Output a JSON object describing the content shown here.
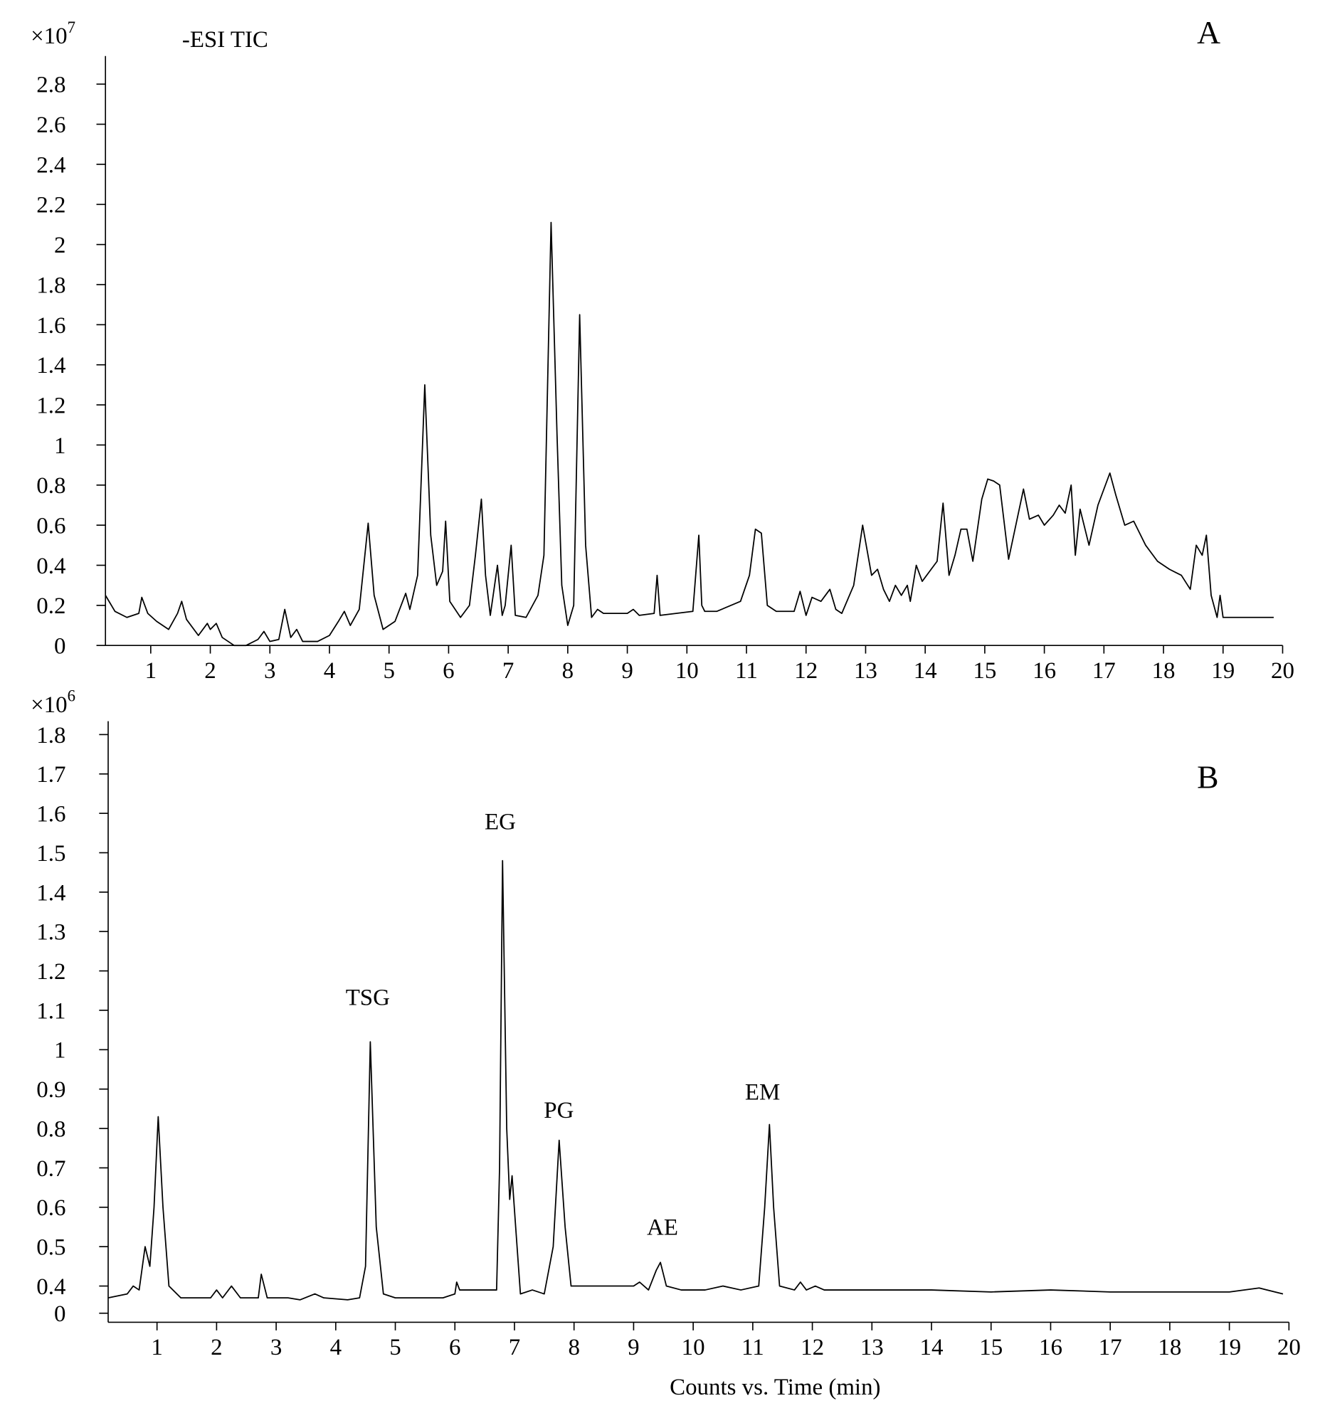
{
  "chart_data": [
    {
      "type": "line",
      "panel": "A",
      "trace_label": "-ESI TIC",
      "y_multiplier": "×10",
      "y_exponent": "7",
      "color": "#000000",
      "xlim": [
        0.24,
        20
      ],
      "xticks": [
        1,
        2,
        3,
        4,
        5,
        6,
        7,
        8,
        9,
        10,
        11,
        12,
        13,
        14,
        15,
        16,
        17,
        18,
        19,
        20
      ],
      "ylim": [
        0,
        2.94
      ],
      "yticks": [
        0,
        0.2,
        0.4,
        0.6,
        0.8,
        1,
        1.2,
        1.4,
        1.6,
        1.8,
        2,
        2.2,
        2.4,
        2.6,
        2.8
      ],
      "x": [
        0.24,
        0.4,
        0.6,
        0.8,
        0.85,
        0.95,
        1.1,
        1.3,
        1.45,
        1.52,
        1.6,
        1.8,
        1.95,
        2.0,
        2.1,
        2.2,
        2.4,
        2.6,
        2.8,
        2.9,
        3.0,
        3.15,
        3.25,
        3.35,
        3.45,
        3.55,
        3.8,
        4.0,
        4.15,
        4.25,
        4.35,
        4.5,
        4.65,
        4.75,
        4.9,
        5.1,
        5.28,
        5.35,
        5.48,
        5.6,
        5.7,
        5.8,
        5.9,
        5.95,
        6.02,
        6.2,
        6.35,
        6.45,
        6.55,
        6.62,
        6.7,
        6.82,
        6.9,
        6.95,
        7.05,
        7.12,
        7.3,
        7.5,
        7.6,
        7.72,
        7.82,
        7.9,
        8.0,
        8.1,
        8.2,
        8.3,
        8.4,
        8.5,
        8.6,
        9.0,
        9.1,
        9.2,
        9.45,
        9.5,
        9.55,
        10.1,
        10.2,
        10.25,
        10.3,
        10.5,
        10.9,
        11.05,
        11.15,
        11.25,
        11.35,
        11.5,
        11.8,
        11.9,
        12.0,
        12.1,
        12.25,
        12.4,
        12.5,
        12.6,
        12.8,
        12.95,
        13.1,
        13.2,
        13.3,
        13.4,
        13.5,
        13.6,
        13.7,
        13.75,
        13.85,
        13.95,
        14.1,
        14.2,
        14.3,
        14.4,
        14.5,
        14.6,
        14.7,
        14.8,
        14.95,
        15.05,
        15.15,
        15.25,
        15.4,
        15.5,
        15.65,
        15.75,
        15.9,
        16.0,
        16.15,
        16.25,
        16.35,
        16.45,
        16.52,
        16.6,
        16.75,
        16.9,
        17.1,
        17.2,
        17.35,
        17.5,
        17.7,
        17.9,
        18.1,
        18.3,
        18.45,
        18.55,
        18.65,
        18.72,
        18.8,
        18.9,
        18.95,
        19.0,
        19.5,
        19.85
      ],
      "values": [
        0.25,
        0.17,
        0.14,
        0.16,
        0.24,
        0.16,
        0.12,
        0.08,
        0.16,
        0.22,
        0.13,
        0.05,
        0.11,
        0.08,
        0.11,
        0.04,
        0.0,
        0.0,
        0.03,
        0.07,
        0.02,
        0.03,
        0.18,
        0.04,
        0.08,
        0.02,
        0.02,
        0.05,
        0.12,
        0.17,
        0.1,
        0.18,
        0.61,
        0.25,
        0.08,
        0.12,
        0.26,
        0.18,
        0.35,
        1.3,
        0.55,
        0.3,
        0.37,
        0.62,
        0.22,
        0.14,
        0.2,
        0.45,
        0.73,
        0.35,
        0.15,
        0.4,
        0.15,
        0.2,
        0.5,
        0.15,
        0.14,
        0.25,
        0.45,
        2.11,
        1.05,
        0.3,
        0.1,
        0.2,
        1.65,
        0.5,
        0.14,
        0.18,
        0.16,
        0.16,
        0.18,
        0.15,
        0.16,
        0.35,
        0.15,
        0.17,
        0.55,
        0.2,
        0.17,
        0.17,
        0.22,
        0.35,
        0.58,
        0.56,
        0.2,
        0.17,
        0.17,
        0.27,
        0.15,
        0.24,
        0.22,
        0.28,
        0.18,
        0.16,
        0.3,
        0.6,
        0.35,
        0.38,
        0.28,
        0.22,
        0.3,
        0.25,
        0.3,
        0.22,
        0.4,
        0.32,
        0.38,
        0.42,
        0.71,
        0.35,
        0.45,
        0.58,
        0.58,
        0.42,
        0.73,
        0.83,
        0.82,
        0.8,
        0.43,
        0.57,
        0.78,
        0.63,
        0.65,
        0.6,
        0.65,
        0.7,
        0.66,
        0.8,
        0.45,
        0.68,
        0.5,
        0.7,
        0.86,
        0.75,
        0.6,
        0.62,
        0.5,
        0.42,
        0.38,
        0.35,
        0.28,
        0.5,
        0.45,
        0.55,
        0.25,
        0.14,
        0.25,
        0.14,
        0.14,
        0.14
      ]
    },
    {
      "type": "line",
      "panel": "B",
      "y_multiplier": "×10",
      "y_exponent": "6",
      "x_label": "Counts vs. Time (min)",
      "color": "#000000",
      "annotations": [
        "TSG",
        "EG",
        "PG",
        "AE",
        "EM"
      ],
      "xlim": [
        0.18,
        20
      ],
      "xticks": [
        1,
        2,
        3,
        4,
        5,
        6,
        7,
        8,
        9,
        10,
        11,
        12,
        13,
        14,
        15,
        16,
        17,
        18,
        19,
        20
      ],
      "ylim": [
        0.308,
        1.834
      ],
      "yticks": [
        {
          "value": 0.331,
          "label": "0"
        },
        0.4,
        0.5,
        0.6,
        0.7,
        0.8,
        0.9,
        1,
        1.1,
        1.2,
        1.3,
        1.4,
        1.5,
        1.6,
        1.7,
        1.8
      ],
      "x": [
        0.18,
        0.5,
        0.6,
        0.7,
        0.8,
        0.88,
        0.95,
        1.02,
        1.1,
        1.2,
        1.4,
        1.6,
        1.9,
        2.0,
        2.1,
        2.25,
        2.4,
        2.7,
        2.75,
        2.85,
        3.2,
        3.4,
        3.65,
        3.8,
        4.2,
        4.4,
        4.5,
        4.58,
        4.68,
        4.8,
        5.0,
        5.5,
        5.8,
        6.0,
        6.03,
        6.08,
        6.7,
        6.75,
        6.8,
        6.87,
        6.92,
        6.96,
        7.02,
        7.1,
        7.3,
        7.5,
        7.65,
        7.75,
        7.85,
        7.95,
        8.5,
        9.0,
        9.1,
        9.25,
        9.38,
        9.45,
        9.55,
        9.8,
        10.2,
        10.5,
        10.8,
        11.1,
        11.2,
        11.28,
        11.35,
        11.45,
        11.7,
        11.8,
        11.9,
        12.05,
        12.2,
        13,
        14,
        15,
        16,
        17,
        18,
        19,
        19.5,
        19.9
      ],
      "values": [
        0.37,
        0.38,
        0.4,
        0.39,
        0.5,
        0.45,
        0.6,
        0.83,
        0.6,
        0.4,
        0.37,
        0.37,
        0.37,
        0.39,
        0.37,
        0.4,
        0.37,
        0.37,
        0.43,
        0.37,
        0.37,
        0.365,
        0.38,
        0.37,
        0.365,
        0.37,
        0.45,
        1.02,
        0.55,
        0.38,
        0.37,
        0.37,
        0.37,
        0.38,
        0.41,
        0.39,
        0.39,
        0.7,
        1.48,
        0.8,
        0.62,
        0.68,
        0.55,
        0.38,
        0.39,
        0.38,
        0.5,
        0.77,
        0.55,
        0.4,
        0.4,
        0.4,
        0.41,
        0.39,
        0.44,
        0.46,
        0.4,
        0.39,
        0.39,
        0.4,
        0.39,
        0.4,
        0.6,
        0.81,
        0.6,
        0.4,
        0.39,
        0.41,
        0.39,
        0.4,
        0.39,
        0.39,
        0.39,
        0.385,
        0.39,
        0.385,
        0.385,
        0.385,
        0.395,
        0.38
      ]
    }
  ]
}
